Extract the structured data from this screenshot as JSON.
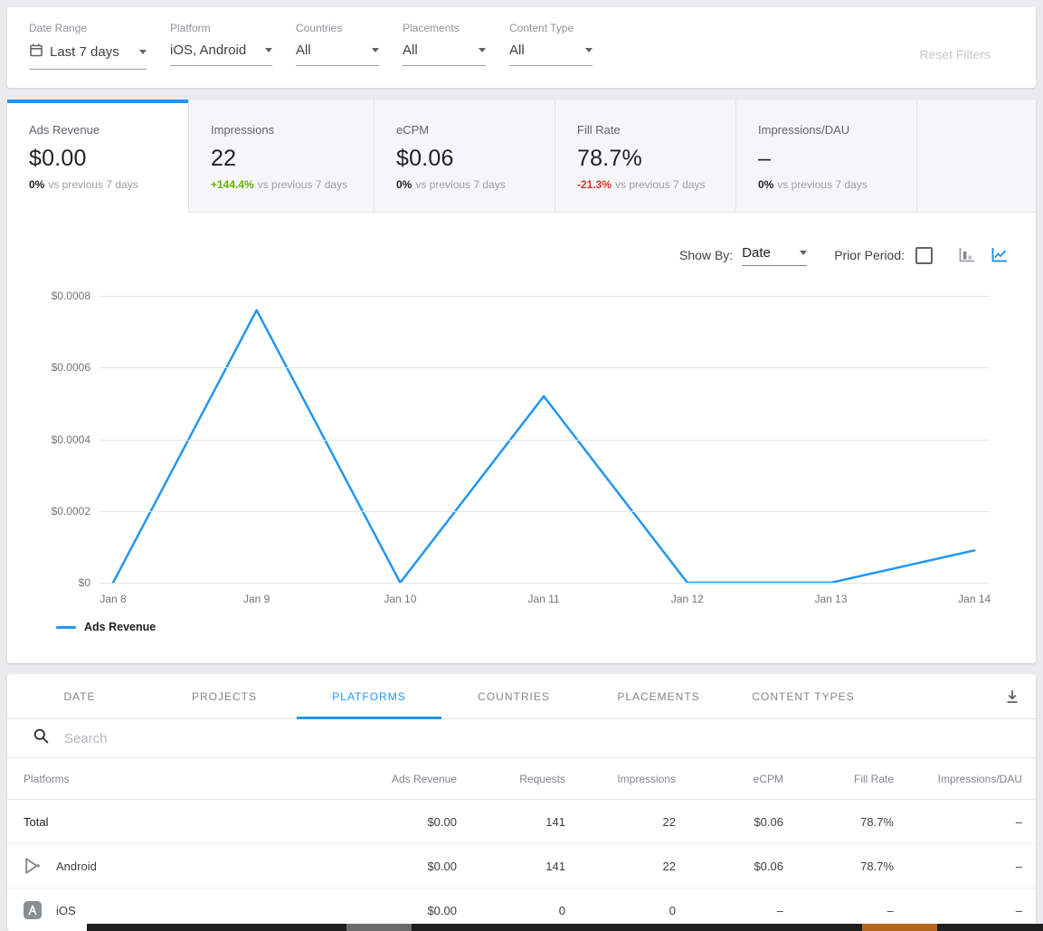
{
  "colors": {
    "accent_blue": "#2196f3",
    "positive_green": "#64b400",
    "negative_red": "#e0312d",
    "strip_orange": "#b2661c"
  },
  "filters": {
    "items": [
      {
        "label": "Date Range",
        "value": "Last 7 days"
      },
      {
        "label": "Platform",
        "value": "iOS, Android"
      },
      {
        "label": "Countries",
        "value": "All"
      },
      {
        "label": "Placements",
        "value": "All"
      },
      {
        "label": "Content Type",
        "value": "All"
      }
    ],
    "reset_label": "Reset Filters"
  },
  "metrics": {
    "cards": [
      {
        "label": "Ads Revenue",
        "value": "$0.00",
        "delta": "0%",
        "period": "vs previous 7 days"
      },
      {
        "label": "Impressions",
        "value": "22",
        "delta": "+144.4%",
        "period": "vs previous 7 days"
      },
      {
        "label": "eCPM",
        "value": "$0.06",
        "delta": "0%",
        "period": "vs previous 7 days"
      },
      {
        "label": "Fill Rate",
        "value": "78.7%",
        "delta": "-21.3%",
        "period": "vs previous 7 days"
      },
      {
        "label": "Impressions/DAU",
        "value": "–",
        "delta": "0%",
        "period": "vs previous 7 days"
      }
    ]
  },
  "chart_controls": {
    "show_by_label": "Show By:",
    "show_by_value": "Date",
    "prior_period_label": "Prior Period:",
    "prior_period_checked": false,
    "chart_type_selected": "line"
  },
  "chart_data": {
    "type": "line",
    "title": "",
    "x": [
      "Jan 8",
      "Jan 9",
      "Jan 10",
      "Jan 11",
      "Jan 12",
      "Jan 13",
      "Jan 14"
    ],
    "series": [
      {
        "name": "Ads Revenue",
        "color": "#2196f3",
        "values": [
          0,
          0.00076,
          0,
          0.00052,
          0,
          0,
          9e-05
        ]
      }
    ],
    "ylim": [
      0,
      0.0008
    ],
    "ytick_labels": [
      "$0.0008",
      "$0.0006",
      "$0.0004",
      "$0.0002",
      "$0"
    ],
    "grid": true,
    "legend_position": "bottom-left"
  },
  "table": {
    "tabs": [
      "DATE",
      "PROJECTS",
      "PLATFORMS",
      "COUNTRIES",
      "PLACEMENTS",
      "CONTENT TYPES"
    ],
    "active_tab": "PLATFORMS",
    "search_placeholder": "Search",
    "columns": [
      "Platforms",
      "Ads Revenue",
      "Requests",
      "Impressions",
      "eCPM",
      "Fill Rate",
      "Impressions/DAU"
    ],
    "rows": [
      {
        "name": "Total",
        "icon": "",
        "values": [
          "$0.00",
          "141",
          "22",
          "$0.06",
          "78.7%",
          "–"
        ]
      },
      {
        "name": "Android",
        "icon": "google-play",
        "values": [
          "$0.00",
          "141",
          "22",
          "$0.06",
          "78.7%",
          "–"
        ]
      },
      {
        "name": "iOS",
        "icon": "app-store",
        "values": [
          "$0.00",
          "0",
          "0",
          "–",
          "–",
          "–"
        ]
      }
    ]
  }
}
